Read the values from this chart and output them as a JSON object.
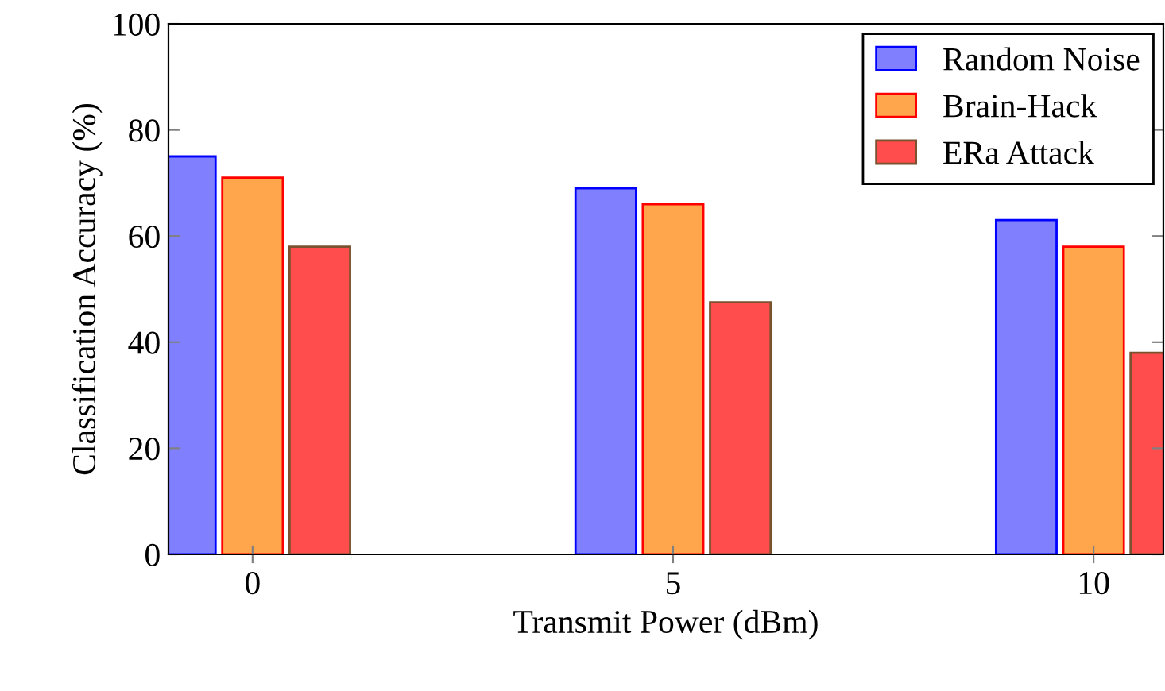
{
  "chart_data": {
    "type": "bar",
    "xlabel": "Transmit Power (dBm)",
    "ylabel": "Classification Accuracy (%)",
    "x": [
      0,
      5,
      10
    ],
    "series": [
      {
        "name": "Random Noise",
        "color": "#8080ff",
        "values": [
          75,
          69,
          63
        ]
      },
      {
        "name": "Brain-Hack",
        "color": "#ffa64d",
        "values": [
          71,
          66,
          58
        ]
      },
      {
        "name": "ERa Attack",
        "color": "#ff4d4d",
        "values": [
          58,
          47.5,
          38
        ]
      }
    ],
    "xlim": [
      -1,
      10.83
    ],
    "ylim": [
      0,
      100
    ],
    "xticks": [
      0,
      5,
      10
    ],
    "yticks": [
      0,
      20,
      40,
      60,
      80,
      100
    ],
    "legend": "top right",
    "grid": false
  }
}
